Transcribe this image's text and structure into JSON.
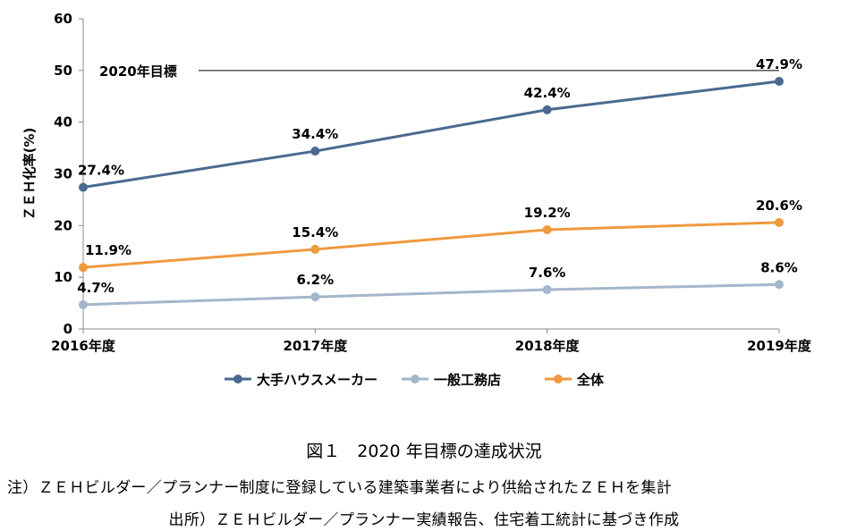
{
  "chart_data": {
    "type": "line",
    "categories": [
      "2016年度",
      "2017年度",
      "2018年度",
      "2019年度"
    ],
    "ylabel": "ＺＥＨ化率(%)",
    "ylim": [
      0,
      60
    ],
    "yticks": [
      0,
      10,
      20,
      30,
      40,
      50,
      60
    ],
    "grid": false,
    "legend_position": "bottom",
    "reference_line": {
      "label": "2020年目標",
      "value": 50
    },
    "series": [
      {
        "name": "大手ハウスメーカー",
        "color": "#4a6990",
        "values": [
          27.4,
          34.4,
          42.4,
          47.9
        ],
        "labels": [
          "27.4%",
          "34.4%",
          "42.4%",
          "47.9%"
        ]
      },
      {
        "name": "一般工務店",
        "color": "#a4b6ca",
        "values": [
          4.7,
          6.2,
          7.6,
          8.6
        ],
        "labels": [
          "4.7%",
          "6.2%",
          "7.6%",
          "8.6%"
        ]
      },
      {
        "name": "全体",
        "color": "#ee9a3e",
        "values": [
          11.9,
          15.4,
          19.2,
          20.6
        ],
        "labels": [
          "11.9%",
          "15.4%",
          "19.2%",
          "20.6%"
        ]
      }
    ]
  },
  "figure": {
    "title": "図１　2020 年目標の達成状況",
    "note": "注）ＺＥＨビルダー／プランナー制度に登録している建築事業者により供給されたＺＥＨを集計",
    "source": "出所）ＺＥＨビルダー／プランナー実績報告、住宅着工統計に基づき作成"
  }
}
